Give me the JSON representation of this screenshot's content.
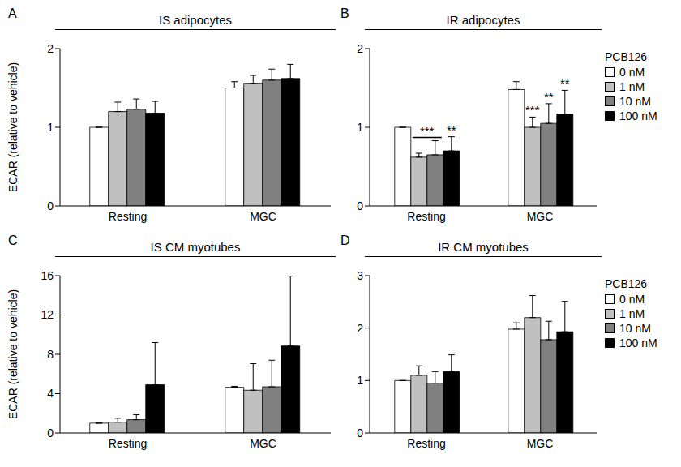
{
  "chart_data": [
    {
      "type": "bar",
      "label": "A",
      "title": "IS adipocytes",
      "y_label": "ECAR (relative to vehicle)",
      "categories": [
        "Resting",
        "MGC"
      ],
      "series": [
        {
          "name": "0 nM",
          "color": "#ffffff",
          "values": [
            1.0,
            1.5
          ],
          "errors": [
            0,
            0.08
          ]
        },
        {
          "name": "1 nM",
          "color": "#c0c0c0",
          "values": [
            1.2,
            1.56
          ],
          "errors": [
            0.12,
            0.1
          ]
        },
        {
          "name": "10 nM",
          "color": "#808080",
          "values": [
            1.23,
            1.6
          ],
          "errors": [
            0.13,
            0.14
          ]
        },
        {
          "name": "100 nM",
          "color": "#000000",
          "values": [
            1.18,
            1.62
          ],
          "errors": [
            0.15,
            0.18
          ]
        }
      ],
      "ylim": [
        0,
        2
      ],
      "yticks": [
        0,
        1,
        2
      ]
    },
    {
      "type": "bar",
      "label": "B",
      "title": "IR adipocytes",
      "categories": [
        "Resting",
        "MGC"
      ],
      "series": [
        {
          "name": "0 nM",
          "color": "#ffffff",
          "values": [
            1.0,
            1.48
          ],
          "errors": [
            0,
            0.1
          ]
        },
        {
          "name": "1 nM",
          "color": "#c0c0c0",
          "values": [
            0.62,
            1.0
          ],
          "errors": [
            0.05,
            0.13
          ]
        },
        {
          "name": "10 nM",
          "color": "#808080",
          "values": [
            0.65,
            1.05
          ],
          "errors": [
            0.18,
            0.25
          ]
        },
        {
          "name": "100 nM",
          "color": "#000000",
          "values": [
            0.7,
            1.17
          ],
          "errors": [
            0.18,
            0.3
          ]
        }
      ],
      "ylim": [
        0,
        2
      ],
      "yticks": [
        0,
        1,
        2
      ],
      "legend": "right",
      "legend_title": "PCB126",
      "annotations": [
        {
          "category": "Resting",
          "series": [
            "1 nM",
            "10 nM"
          ],
          "text": "***"
        },
        {
          "category": "Resting",
          "series": [
            "100 nM"
          ],
          "text": "**"
        },
        {
          "category": "MGC",
          "series": [
            "1 nM"
          ],
          "text": "***"
        },
        {
          "category": "MGC",
          "series": [
            "10 nM"
          ],
          "text": "**"
        },
        {
          "category": "MGC",
          "series": [
            "100 nM"
          ],
          "text": "**"
        }
      ]
    },
    {
      "type": "bar",
      "label": "C",
      "title": "IS CM myotubes",
      "y_label": "ECAR (relative to vehicle)",
      "categories": [
        "Resting",
        "MGC"
      ],
      "series": [
        {
          "name": "0 nM",
          "color": "#ffffff",
          "values": [
            1.0,
            4.65
          ],
          "errors": [
            0,
            0.1
          ]
        },
        {
          "name": "1 nM",
          "color": "#c0c0c0",
          "values": [
            1.1,
            4.35
          ],
          "errors": [
            0.4,
            2.7
          ]
        },
        {
          "name": "10 nM",
          "color": "#808080",
          "values": [
            1.35,
            4.7
          ],
          "errors": [
            0.5,
            2.7
          ]
        },
        {
          "name": "100 nM",
          "color": "#000000",
          "values": [
            4.9,
            8.85
          ],
          "errors": [
            4.3,
            7.1
          ]
        }
      ],
      "ylim": [
        0,
        16
      ],
      "yticks": [
        0,
        4,
        8,
        12,
        16
      ]
    },
    {
      "type": "bar",
      "label": "D",
      "title": "IR CM myotubes",
      "categories": [
        "Resting",
        "MGC"
      ],
      "series": [
        {
          "name": "0 nM",
          "color": "#ffffff",
          "values": [
            1.0,
            1.98
          ],
          "errors": [
            0,
            0.12
          ]
        },
        {
          "name": "1 nM",
          "color": "#c0c0c0",
          "values": [
            1.1,
            2.2
          ],
          "errors": [
            0.18,
            0.42
          ]
        },
        {
          "name": "10 nM",
          "color": "#808080",
          "values": [
            0.95,
            1.78
          ],
          "errors": [
            0.22,
            0.35
          ]
        },
        {
          "name": "100 nM",
          "color": "#000000",
          "values": [
            1.17,
            1.93
          ],
          "errors": [
            0.32,
            0.58
          ]
        }
      ],
      "ylim": [
        0,
        3
      ],
      "yticks": [
        0,
        1,
        2,
        3
      ],
      "legend": "right",
      "legend_title": "PCB126"
    }
  ]
}
